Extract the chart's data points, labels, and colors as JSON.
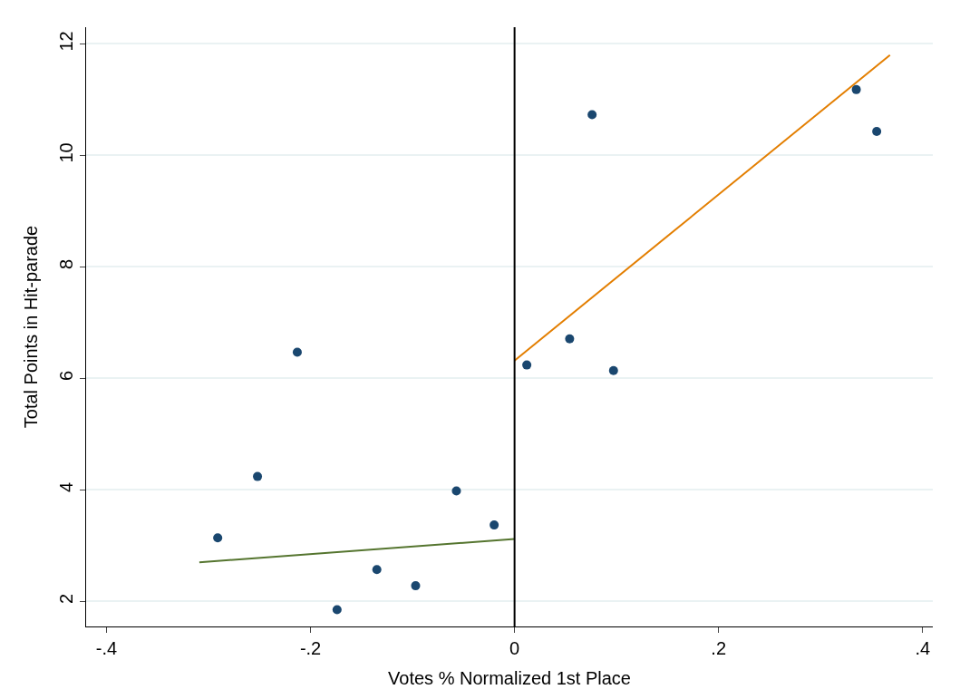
{
  "chart_data": {
    "type": "scatter",
    "xlabel": "Votes % Normalized 1st Place",
    "ylabel": "Total Points in Hit-parade",
    "xlim": [
      -0.42,
      0.41
    ],
    "xticks": [
      {
        "value": -0.4,
        "label": "-.4"
      },
      {
        "value": -0.2,
        "label": "-.2"
      },
      0,
      {
        "value": 0.2,
        "label": ".2"
      },
      {
        "value": 0.4,
        "label": ".4"
      }
    ],
    "ylim": [
      1.55,
      12.3
    ],
    "yticks": [
      2,
      4,
      6,
      8,
      10,
      12
    ],
    "grid": "y",
    "marker": "circle",
    "series": [
      {
        "color": "#1a476f",
        "x": [
          -0.291,
          -0.252,
          -0.213,
          -0.174,
          -0.135,
          -0.097,
          -0.057,
          -0.02,
          0.012,
          0.054,
          0.076,
          0.097,
          0.335,
          0.355
        ],
        "values": [
          3.14,
          4.24,
          6.47,
          1.85,
          2.57,
          2.28,
          3.98,
          3.37,
          6.24,
          6.71,
          10.73,
          6.14,
          11.18,
          10.43
        ]
      },
      {
        "type": "line",
        "color": "#55752f",
        "x": [
          -0.309,
          0
        ],
        "values": [
          2.7,
          3.12
        ],
        "marker": "none"
      },
      {
        "type": "line",
        "color": "#e37e00",
        "x": [
          0,
          0.368
        ],
        "values": [
          6.32,
          11.8
        ],
        "marker": "none"
      }
    ],
    "ref_lines": [
      {
        "axis": "x",
        "value": 0,
        "color": "#000000",
        "line_style": "solid"
      }
    ]
  }
}
